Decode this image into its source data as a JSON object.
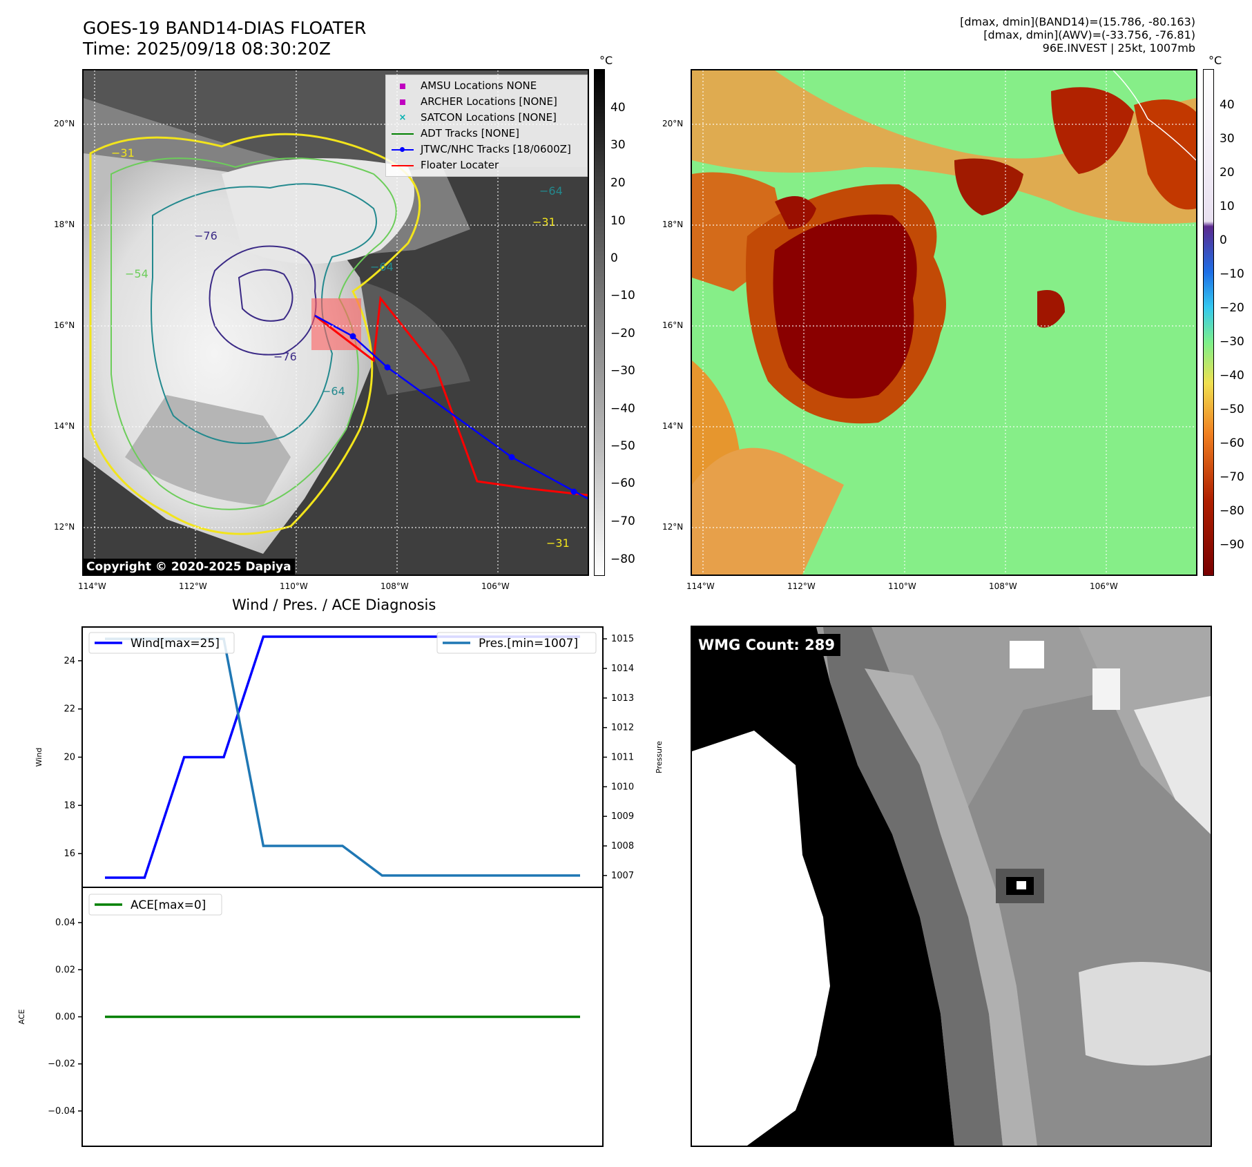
{
  "header": {
    "title_line1": "GOES-19 BAND14-DIAS FLOATER",
    "title_line2": "Time: 2025/09/18 08:30:20Z",
    "stats_line1": "[dmax, dmin](BAND14)=(15.786, -80.163)",
    "stats_line2": "[dmax, dmin](AWV)=(-33.756, -76.81)",
    "stats_line3": "96E.INVEST | 25kt, 1007mb"
  },
  "map": {
    "lat_ticks": [
      "20°N",
      "18°N",
      "16°N",
      "14°N",
      "12°N"
    ],
    "lon_ticks": [
      "114°W",
      "112°W",
      "110°W",
      "108°W",
      "106°W"
    ],
    "copyright": "Copyright © 2020-2025 Dapiya",
    "contour_labels": [
      "-76",
      "-76",
      "-64",
      "-64",
      "-64",
      "-54",
      "-31",
      "-31",
      "-31"
    ],
    "colors": {
      "contour_yellow": "#f2e41c",
      "contour_green": "#6ccd5a",
      "contour_teal": "#23898e",
      "contour_navy": "#3b2a86",
      "jtwc_track": "#0000ff",
      "floater": "#ff0000"
    }
  },
  "legend": {
    "items": [
      {
        "label": "AMSU Locations NONE",
        "icon": "square-marker",
        "color": "#c000c0"
      },
      {
        "label": "ARCHER Locations [NONE]",
        "icon": "square-marker",
        "color": "#c000c0"
      },
      {
        "label": "SATCON Locations [NONE]",
        "icon": "x-marker",
        "color": "#00b0b0"
      },
      {
        "label": "ADT Tracks [NONE]",
        "icon": "line",
        "color": "#008000"
      },
      {
        "label": "JTWC/NHC Tracks [18/0600Z]",
        "icon": "line-dot",
        "color": "#0000ff"
      },
      {
        "label": "Floater Locater",
        "icon": "line",
        "color": "#ff0000"
      }
    ]
  },
  "colorbar_band14": {
    "unit": "°C",
    "ticks": [
      "40",
      "30",
      "20",
      "10",
      "0",
      "−10",
      "−20",
      "−30",
      "−40",
      "−50",
      "−60",
      "−70",
      "−80"
    ]
  },
  "colorbar_awv": {
    "unit": "°C",
    "ticks": [
      "40",
      "30",
      "20",
      "10",
      "0",
      "−10",
      "−20",
      "−30",
      "−40",
      "−50",
      "−60",
      "−70",
      "−80",
      "−90"
    ]
  },
  "chart_data": [
    {
      "type": "line",
      "title": "Wind / Pres. / ACE Diagnosis",
      "xlabel": "",
      "ylabel": "Wind",
      "ylabel_right": "Pressure",
      "x": [
        0,
        1,
        2,
        3,
        4,
        5,
        6,
        7,
        8,
        9,
        10,
        11,
        12
      ],
      "series": [
        {
          "name": "Wind[max=25]",
          "axis": "left",
          "color": "#0000ff",
          "values": [
            15,
            15,
            20,
            20,
            25,
            25,
            25,
            25,
            25,
            25,
            25,
            25,
            25
          ]
        },
        {
          "name": "Pres.[min=1007]",
          "axis": "right",
          "color": "#1f77b4",
          "values": [
            1015,
            1015,
            1015,
            1015,
            1008,
            1008,
            1008,
            1007,
            1007,
            1007,
            1007,
            1007,
            1007
          ]
        }
      ],
      "ylim": [
        14.6,
        25.4
      ],
      "ylim_right": [
        1006.6,
        1015.4
      ],
      "yticks": [
        "24",
        "22",
        "20",
        "18",
        "16"
      ],
      "yticks_right": [
        "1015",
        "1014",
        "1013",
        "1012",
        "1011",
        "1010",
        "1009",
        "1008",
        "1007"
      ]
    },
    {
      "type": "line",
      "title": "",
      "xlabel": "",
      "ylabel": "ACE",
      "x": [
        0,
        1,
        2,
        3,
        4,
        5,
        6,
        7,
        8,
        9,
        10,
        11,
        12
      ],
      "series": [
        {
          "name": "ACE[max=0]",
          "color": "#008000",
          "values": [
            0,
            0,
            0,
            0,
            0,
            0,
            0,
            0,
            0,
            0,
            0,
            0,
            0
          ]
        }
      ],
      "ylim": [
        -0.055,
        0.055
      ],
      "yticks": [
        "0.04",
        "0.02",
        "0.00",
        "−0.02",
        "−0.04"
      ]
    }
  ],
  "wmg": {
    "label": "WMG Count: 289"
  }
}
